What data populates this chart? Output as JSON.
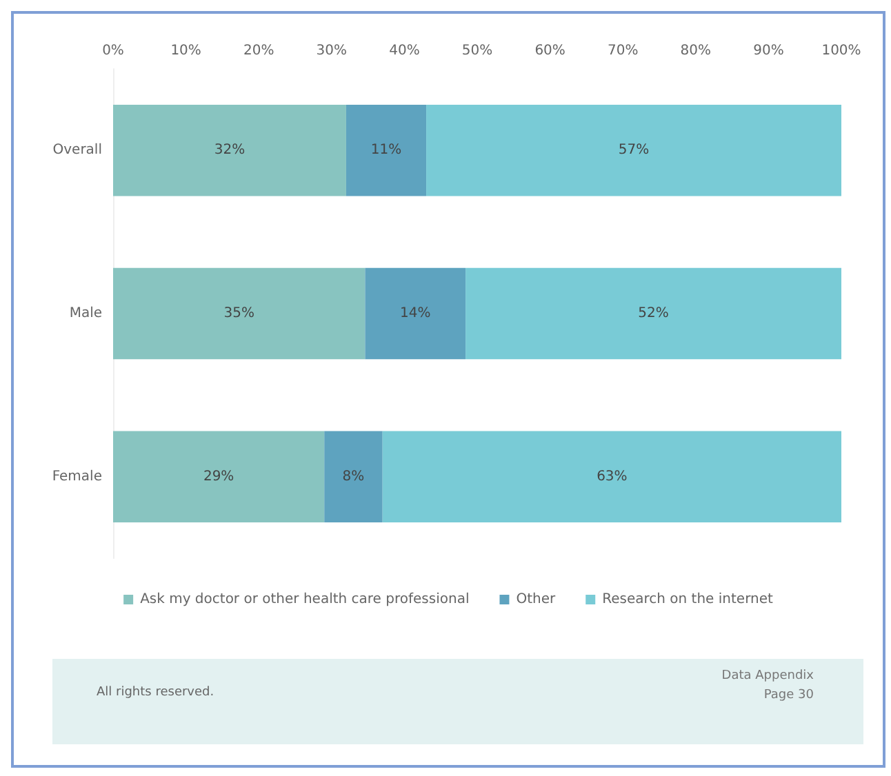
{
  "chart_data": {
    "type": "bar",
    "orientation": "horizontal",
    "stacked": true,
    "categories": [
      "Overall",
      "Male",
      "Female"
    ],
    "series": [
      {
        "name": "Ask my doctor or other health care professional",
        "color": "#88c4c0",
        "values": [
          32,
          34.6,
          29
        ],
        "value_labels": [
          "32%",
          "35%",
          "29%"
        ]
      },
      {
        "name": "Other",
        "color": "#5ea3bf",
        "values": [
          11,
          13.8,
          8
        ],
        "value_labels": [
          "11%",
          "14%",
          "8%"
        ]
      },
      {
        "name": "Research on the internet",
        "color": "#79cbd6",
        "values": [
          57,
          51.6,
          63
        ],
        "value_labels": [
          "57%",
          "52%",
          "63%"
        ]
      }
    ],
    "xlim": [
      0,
      100
    ],
    "xticks": [
      {
        "value": 0,
        "label": "0%"
      },
      {
        "value": 10,
        "label": "10%"
      },
      {
        "value": 20,
        "label": "20%"
      },
      {
        "value": 30,
        "label": "30%"
      },
      {
        "value": 40,
        "label": "40%"
      },
      {
        "value": 50,
        "label": "50%"
      },
      {
        "value": 60,
        "label": "60%"
      },
      {
        "value": 70,
        "label": "70%"
      },
      {
        "value": 80,
        "label": "80%"
      },
      {
        "value": 90,
        "label": "90%"
      },
      {
        "value": 100,
        "label": "100%"
      }
    ],
    "grid": false,
    "legend": "bottom",
    "annotations": [
      "All rights reserved.",
      "Data Appendix",
      "Page 30"
    ]
  }
}
